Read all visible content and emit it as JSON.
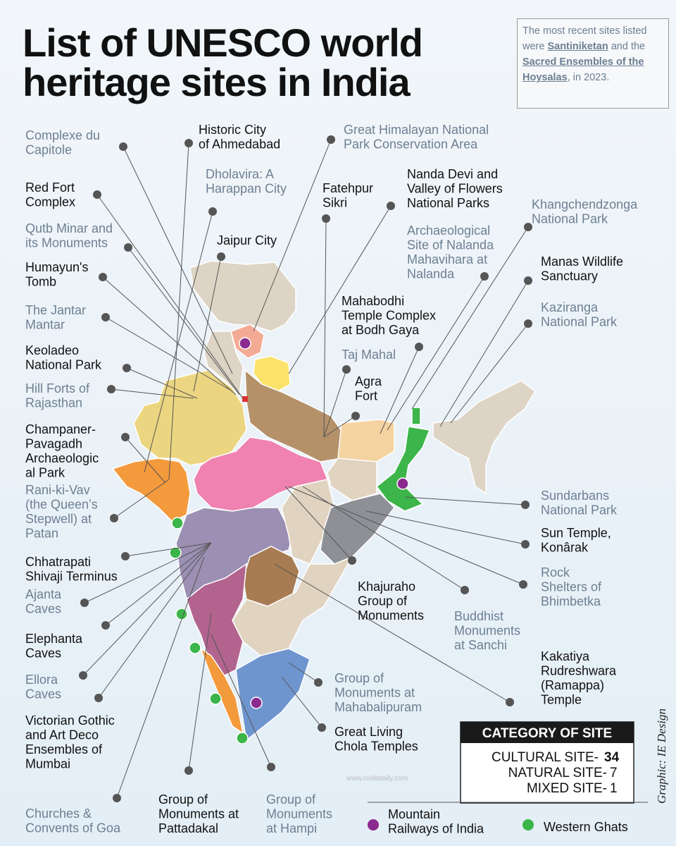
{
  "title": [
    "List of UNESCO world",
    "heritage sites in India"
  ],
  "note": {
    "before": "The most recent sites listed were",
    "link1": "Santiniketan",
    "middle": "and the",
    "link2": "Sacred Ensembles of the Hoysalas",
    "after": ", in 2023."
  },
  "labels": [
    {
      "lines": [
        "Complexe du",
        "Capitole"
      ],
      "color": "#6d7f92"
    },
    {
      "lines": [
        "Red Fort",
        "Complex"
      ],
      "color": "#111111"
    },
    {
      "lines": [
        "Qutb Minar and",
        "its Monuments"
      ],
      "color": "#6d7f92"
    },
    {
      "lines": [
        "Humayun's",
        "Tomb"
      ],
      "color": "#111111"
    },
    {
      "lines": [
        "The Jantar",
        "Mantar"
      ],
      "color": "#6d7f92"
    },
    {
      "lines": [
        "Keoladeo",
        "National Park"
      ],
      "color": "#111111"
    },
    {
      "lines": [
        "Hill Forts of",
        "Rajasthan"
      ],
      "color": "#6d7f92"
    },
    {
      "lines": [
        "Champaner-",
        "Pavagadh",
        "Archaeologic",
        "al Park"
      ],
      "color": "#111111"
    },
    {
      "lines": [
        "Rani-ki-Vav",
        "(the Queen’s",
        "Stepwell) at",
        "Patan"
      ],
      "color": "#6d7f92"
    },
    {
      "lines": [
        "Chhatrapati",
        "Shivaji Terminus"
      ],
      "color": "#111111"
    },
    {
      "lines": [
        "Ajanta",
        "Caves"
      ],
      "color": "#6d7f92"
    },
    {
      "lines": [
        "Elephanta",
        "Caves"
      ],
      "color": "#111111"
    },
    {
      "lines": [
        "Ellora",
        "Caves"
      ],
      "color": "#6d7f92"
    },
    {
      "lines": [
        "Victorian Gothic",
        "and Art Deco",
        "Ensembles of",
        "Mumbai"
      ],
      "color": "#111111"
    },
    {
      "lines": [
        "Churches &",
        "Convents of Goa"
      ],
      "color": "#6d7f92"
    },
    {
      "lines": [
        "Group of",
        "Monuments at",
        "Pattadakal"
      ],
      "color": "#111111"
    },
    {
      "lines": [
        "Group of",
        "Monuments",
        "at Hampi"
      ],
      "color": "#6d7f92"
    },
    {
      "lines": [
        "Historic City",
        "of Ahmedabad"
      ],
      "color": "#111111"
    },
    {
      "lines": [
        "Dholavira: A",
        "Harappan City"
      ],
      "color": "#6d7f92"
    },
    {
      "lines": [
        "Jaipur City"
      ],
      "color": "#111111"
    },
    {
      "lines": [
        "Great Himalayan National",
        "Park Conservation Area"
      ],
      "color": "#6d7f92"
    },
    {
      "lines": [
        "Fatehpur",
        "Sikri"
      ],
      "color": "#111111"
    },
    {
      "lines": [
        "Nanda Devi and",
        "Valley of Flowers",
        "National Parks"
      ],
      "color": "#111111"
    },
    {
      "lines": [
        "Archaeological",
        "Site of Nalanda",
        "Mahavihara at",
        "Nalanda"
      ],
      "color": "#6d7f92"
    },
    {
      "lines": [
        "Mahabodhi",
        "Temple Complex",
        "at Bodh Gaya"
      ],
      "color": "#111111"
    },
    {
      "lines": [
        "Taj Mahal"
      ],
      "color": "#6d7f92"
    },
    {
      "lines": [
        "Agra",
        "Fort"
      ],
      "color": "#111111"
    },
    {
      "lines": [
        "Khangchendzonga",
        "National Park"
      ],
      "color": "#6d7f92"
    },
    {
      "lines": [
        "Manas Wildlife",
        "Sanctuary"
      ],
      "color": "#111111"
    },
    {
      "lines": [
        "Kaziranga",
        "National Park"
      ],
      "color": "#6d7f92"
    },
    {
      "lines": [
        "Sundarbans",
        "National Park"
      ],
      "color": "#6d7f92"
    },
    {
      "lines": [
        "Sun Temple,",
        "Konârak"
      ],
      "color": "#111111"
    },
    {
      "lines": [
        "Rock",
        "Shelters of",
        "Bhimbetka"
      ],
      "color": "#6d7f92"
    },
    {
      "lines": [
        "Khajuraho",
        "Group of",
        "Monuments"
      ],
      "color": "#111111"
    },
    {
      "lines": [
        "Buddhist",
        "Monuments",
        "at Sanchi"
      ],
      "color": "#6d7f92"
    },
    {
      "lines": [
        "Kakatiya",
        "Rudreshwara",
        "(Ramappa)",
        "Temple"
      ],
      "color": "#111111"
    },
    {
      "lines": [
        "Group of",
        "Monuments at",
        "Mahabalipuram"
      ],
      "color": "#6d7f92"
    },
    {
      "lines": [
        "Great Living",
        "Chola Temples"
      ],
      "color": "#111111"
    }
  ],
  "category_box": {
    "title": "CATEGORY OF SITE",
    "rows": [
      {
        "label": "CULTURAL SITE-",
        "count": 34
      },
      {
        "label": "NATURAL SITE-",
        "count": 7
      },
      {
        "label": "MIXED SITE-",
        "count": 1
      }
    ]
  },
  "legend": [
    {
      "lines": [
        "Mountain",
        "Railways of India"
      ],
      "color": "#8b2a8f"
    },
    {
      "lines": [
        "Western Ghats"
      ],
      "color": "#3bb54a"
    }
  ],
  "credit": "Graphic: IE Design",
  "watermark": "www.civilsdaily.com"
}
